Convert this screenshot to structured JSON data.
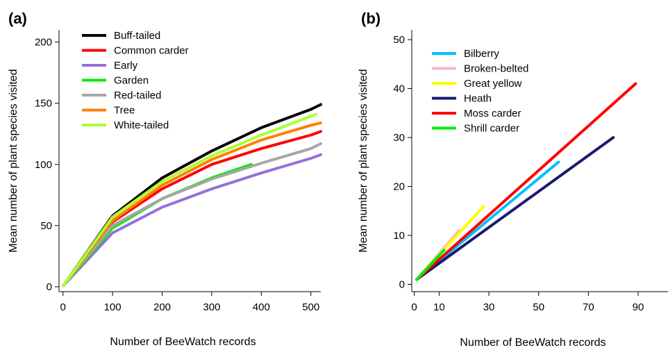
{
  "chart_data": [
    {
      "type": "line",
      "panel_label": "(a)",
      "xlabel": "Number of BeeWatch records",
      "ylabel": "Mean number of plant species visited",
      "xlim": [
        -8,
        520
      ],
      "ylim": [
        -4,
        210
      ],
      "xticks": [
        0,
        100,
        200,
        300,
        400,
        500
      ],
      "yticks": [
        0,
        50,
        100,
        150,
        200
      ],
      "grid": false,
      "legend": "top-left",
      "series": [
        {
          "name": "Buff-tailed",
          "color": "#000000",
          "x": [
            1,
            100,
            200,
            300,
            400,
            500,
            520
          ],
          "y": [
            1,
            58,
            89,
            111,
            130,
            145,
            149
          ]
        },
        {
          "name": "Common carder",
          "color": "#ff0000",
          "x": [
            1,
            100,
            200,
            300,
            400,
            500,
            520
          ],
          "y": [
            1,
            53,
            80,
            100,
            113,
            124,
            127
          ]
        },
        {
          "name": "Early",
          "color": "#9370db",
          "x": [
            1,
            100,
            200,
            300,
            400,
            500,
            520
          ],
          "y": [
            1,
            44,
            65,
            80,
            93,
            105,
            108
          ]
        },
        {
          "name": "Garden",
          "color": "#00ee00",
          "x": [
            1,
            100,
            200,
            300,
            380
          ],
          "y": [
            1,
            48,
            72,
            89,
            100
          ]
        },
        {
          "name": "Red-tailed",
          "color": "#a6a6a6",
          "x": [
            1,
            100,
            200,
            300,
            400,
            500,
            520
          ],
          "y": [
            1,
            50,
            72,
            88,
            101,
            113,
            117
          ]
        },
        {
          "name": "Tree",
          "color": "#ff8000",
          "x": [
            1,
            100,
            200,
            300,
            400,
            500,
            520
          ],
          "y": [
            1,
            54,
            83,
            104,
            120,
            132,
            134
          ]
        },
        {
          "name": "White-tailed",
          "color": "#adff2f",
          "x": [
            1,
            100,
            200,
            300,
            400,
            510
          ],
          "y": [
            1,
            57,
            86,
            107,
            124,
            141
          ]
        }
      ]
    },
    {
      "type": "line",
      "panel_label": "(b)",
      "xlabel": "Number of BeeWatch records",
      "ylabel": "Mean number of plant species visited",
      "xlim": [
        -1,
        102
      ],
      "ylim": [
        -1.5,
        52
      ],
      "xticks": [
        0,
        10,
        30,
        50,
        70,
        90
      ],
      "yticks": [
        0,
        10,
        20,
        30,
        40,
        50
      ],
      "grid": false,
      "legend": "top-left",
      "series": [
        {
          "name": "Bilberry",
          "color": "#00bfff",
          "x": [
            1,
            58
          ],
          "y": [
            1,
            25
          ]
        },
        {
          "name": "Broken-belted",
          "color": "#ffb6c1",
          "x": [
            1,
            18
          ],
          "y": [
            1,
            11
          ]
        },
        {
          "name": "Great yellow",
          "color": "#ffff00",
          "x": [
            1,
            28
          ],
          "y": [
            1,
            16
          ]
        },
        {
          "name": "Heath",
          "color": "#191970",
          "x": [
            1,
            80
          ],
          "y": [
            1,
            30
          ]
        },
        {
          "name": "Moss carder",
          "color": "#ff0000",
          "x": [
            1,
            89
          ],
          "y": [
            1,
            41
          ]
        },
        {
          "name": "Shrill carder",
          "color": "#00ee00",
          "x": [
            1,
            12
          ],
          "y": [
            1,
            7
          ]
        }
      ]
    }
  ]
}
